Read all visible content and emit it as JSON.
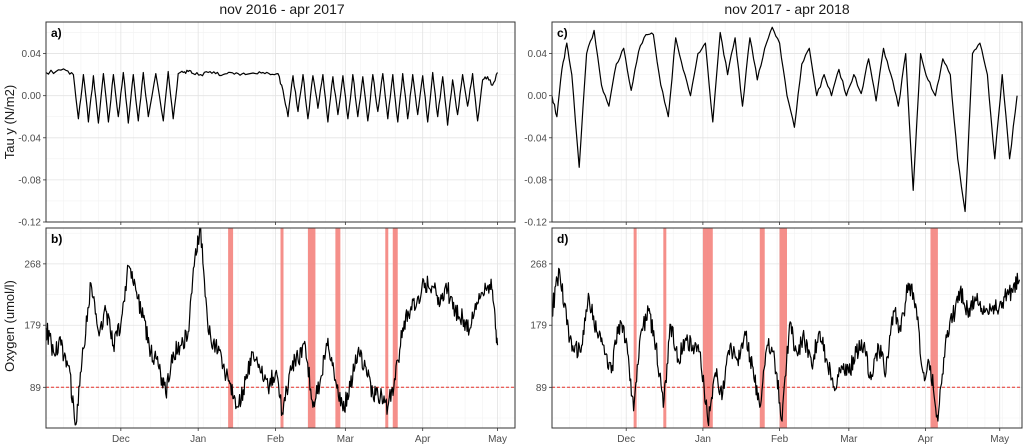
{
  "chart_data": [
    {
      "type": "line",
      "panel": "a)",
      "column_title": "nov 2016 - apr 2017",
      "ylabel": "Tau y (N/m2)",
      "ylim": [
        -0.12,
        0.07
      ],
      "y_ticks": [
        0.04,
        0.0,
        -0.04,
        -0.08,
        -0.12
      ],
      "y_tick_labels": [
        "0.04",
        "0.00",
        "-0.04",
        "-0.08",
        "-0.12"
      ],
      "xlim": [
        "2016-11-01",
        "2017-05-08"
      ],
      "x_ticks": [
        "2016-12-01",
        "2017-01-01",
        "2017-02-01",
        "2017-03-01",
        "2017-04-01",
        "2017-05-01"
      ],
      "x_tick_labels": [
        "Dec",
        "Jan",
        "Feb",
        "Mar",
        "Apr",
        "May"
      ],
      "grid": true,
      "series": [
        {
          "x": [
            "2016-11-01",
            "2016-11-05",
            "2016-11-09",
            "2016-11-12",
            "2016-11-14",
            "2016-11-16",
            "2016-11-18",
            "2016-11-20",
            "2016-11-22",
            "2016-11-24",
            "2016-11-26",
            "2016-11-28",
            "2016-11-30",
            "2016-12-02",
            "2016-12-04",
            "2016-12-06",
            "2016-12-08",
            "2016-12-10",
            "2016-12-12",
            "2016-12-15",
            "2016-12-18",
            "2016-12-20",
            "2016-12-22",
            "2016-12-24",
            "2016-12-26",
            "2016-12-28",
            "2016-12-30",
            "2017-01-02",
            "2017-01-05",
            "2017-01-08",
            "2017-01-11",
            "2017-01-14",
            "2017-01-17",
            "2017-01-20",
            "2017-01-24",
            "2017-01-27",
            "2017-01-30",
            "2017-02-02",
            "2017-02-04",
            "2017-02-06",
            "2017-02-08",
            "2017-02-10",
            "2017-02-12",
            "2017-02-14",
            "2017-02-16",
            "2017-02-18",
            "2017-02-20",
            "2017-02-22",
            "2017-02-24",
            "2017-02-26",
            "2017-02-28",
            "2017-03-02",
            "2017-03-04",
            "2017-03-06",
            "2017-03-08",
            "2017-03-10",
            "2017-03-12",
            "2017-03-14",
            "2017-03-16",
            "2017-03-18",
            "2017-03-20",
            "2017-03-22",
            "2017-03-24",
            "2017-03-26",
            "2017-03-28",
            "2017-03-30",
            "2017-04-01",
            "2017-04-03",
            "2017-04-05",
            "2017-04-07",
            "2017-04-09",
            "2017-04-11",
            "2017-04-13",
            "2017-04-15",
            "2017-04-17",
            "2017-04-19",
            "2017-04-21",
            "2017-04-23",
            "2017-04-25",
            "2017-04-27",
            "2017-04-29",
            "2017-05-01"
          ],
          "values": [
            0.022,
            0.023,
            0.024,
            0.02,
            -0.022,
            0.02,
            -0.025,
            0.019,
            -0.026,
            0.021,
            -0.025,
            0.02,
            -0.02,
            0.022,
            -0.026,
            0.02,
            -0.024,
            0.022,
            -0.02,
            0.021,
            -0.024,
            0.023,
            -0.022,
            0.021,
            0.022,
            0.023,
            0.021,
            0.02,
            0.022,
            0.021,
            0.02,
            0.022,
            0.021,
            0.02,
            0.021,
            0.022,
            0.02,
            0.021,
            0.005,
            -0.02,
            0.019,
            -0.015,
            0.02,
            -0.022,
            0.019,
            -0.012,
            0.02,
            -0.025,
            0.018,
            -0.018,
            0.019,
            -0.022,
            0.02,
            -0.02,
            0.018,
            -0.024,
            0.02,
            -0.015,
            0.021,
            -0.022,
            0.02,
            -0.025,
            0.021,
            -0.022,
            0.02,
            -0.018,
            0.019,
            -0.025,
            0.022,
            -0.02,
            0.018,
            -0.028,
            0.015,
            -0.018,
            0.02,
            -0.01,
            0.021,
            -0.024,
            0.015,
            0.018,
            0.01,
            0.022
          ]
        }
      ]
    },
    {
      "type": "line",
      "panel": "c)",
      "column_title": "nov 2017 - apr 2018",
      "ylim": [
        -0.12,
        0.07
      ],
      "y_ticks": [
        0.04,
        0.0,
        -0.04,
        -0.08,
        -0.12
      ],
      "y_tick_labels": [
        "0.04",
        "0.00",
        "-0.04",
        "-0.08",
        "-0.12"
      ],
      "xlim": [
        "2017-11-01",
        "2018-05-10"
      ],
      "x_ticks": [
        "2017-12-01",
        "2018-01-01",
        "2018-02-01",
        "2018-03-01",
        "2018-04-01",
        "2018-05-01"
      ],
      "x_tick_labels": [
        "Dec",
        "Jan",
        "Feb",
        "Mar",
        "Apr",
        "May"
      ],
      "grid": true,
      "series": [
        {
          "x": [
            "2017-11-01",
            "2017-11-03",
            "2017-11-05",
            "2017-11-07",
            "2017-11-09",
            "2017-11-12",
            "2017-11-15",
            "2017-11-18",
            "2017-11-21",
            "2017-11-24",
            "2017-11-27",
            "2017-11-30",
            "2017-12-03",
            "2017-12-06",
            "2017-12-09",
            "2017-12-12",
            "2017-12-15",
            "2017-12-18",
            "2017-12-21",
            "2017-12-24",
            "2017-12-27",
            "2017-12-30",
            "2018-01-02",
            "2018-01-05",
            "2018-01-08",
            "2018-01-11",
            "2018-01-14",
            "2018-01-17",
            "2018-01-20",
            "2018-01-23",
            "2018-01-26",
            "2018-01-29",
            "2018-02-01",
            "2018-02-04",
            "2018-02-07",
            "2018-02-10",
            "2018-02-13",
            "2018-02-16",
            "2018-02-19",
            "2018-02-22",
            "2018-02-25",
            "2018-02-28",
            "2018-03-03",
            "2018-03-06",
            "2018-03-09",
            "2018-03-12",
            "2018-03-15",
            "2018-03-18",
            "2018-03-21",
            "2018-03-24",
            "2018-03-27",
            "2018-03-30",
            "2018-04-02",
            "2018-04-05",
            "2018-04-08",
            "2018-04-11",
            "2018-04-14",
            "2018-04-17",
            "2018-04-20",
            "2018-04-23",
            "2018-04-26",
            "2018-04-29",
            "2018-05-02",
            "2018-05-05",
            "2018-05-08"
          ],
          "values": [
            0.0,
            -0.02,
            0.025,
            0.05,
            0.02,
            -0.068,
            0.04,
            0.062,
            0.01,
            -0.01,
            0.03,
            0.045,
            0.005,
            0.042,
            0.058,
            0.058,
            0.01,
            -0.02,
            0.055,
            0.025,
            0.0,
            0.04,
            0.05,
            -0.025,
            0.06,
            0.02,
            0.055,
            -0.01,
            0.055,
            0.015,
            0.045,
            0.065,
            0.05,
            0.0,
            -0.03,
            0.03,
            0.045,
            0.0,
            0.02,
            0.0,
            0.025,
            0.0,
            0.02,
            0.002,
            0.035,
            -0.005,
            0.045,
            0.02,
            -0.01,
            0.04,
            -0.09,
            0.04,
            0.015,
            0.0,
            0.035,
            0.02,
            -0.06,
            -0.11,
            0.04,
            0.05,
            0.02,
            -0.06,
            0.02,
            -0.06,
            0.0
          ]
        }
      ]
    },
    {
      "type": "line",
      "panel": "b)",
      "ylabel": "Oxygen (umol/l)",
      "ylim": [
        30,
        320
      ],
      "y_ticks": [
        268,
        179,
        89
      ],
      "y_tick_labels": [
        "268",
        "179",
        "89"
      ],
      "xlim": [
        "2016-11-01",
        "2017-05-08"
      ],
      "x_ticks": [
        "2016-12-01",
        "2017-01-01",
        "2017-02-01",
        "2017-03-01",
        "2017-04-01",
        "2017-05-01"
      ],
      "x_tick_labels": [
        "Dec",
        "Jan",
        "Feb",
        "Mar",
        "Apr",
        "May"
      ],
      "grid": true,
      "hlines": [
        89,
        30
      ],
      "highlight_spans": [
        [
          "2017-01-13",
          "2017-01-15"
        ],
        [
          "2017-02-03",
          "2017-02-04"
        ],
        [
          "2017-02-14",
          "2017-02-17"
        ],
        [
          "2017-02-25",
          "2017-02-27"
        ],
        [
          "2017-03-17",
          "2017-03-18"
        ],
        [
          "2017-03-20",
          "2017-03-22"
        ]
      ],
      "series": [
        {
          "x": [
            "2016-11-01",
            "2016-11-04",
            "2016-11-07",
            "2016-11-10",
            "2016-11-13",
            "2016-11-16",
            "2016-11-19",
            "2016-11-22",
            "2016-11-25",
            "2016-11-28",
            "2016-12-01",
            "2016-12-04",
            "2016-12-07",
            "2016-12-10",
            "2016-12-13",
            "2016-12-16",
            "2016-12-19",
            "2016-12-22",
            "2016-12-25",
            "2016-12-28",
            "2016-12-31",
            "2017-01-02",
            "2017-01-05",
            "2017-01-08",
            "2017-01-11",
            "2017-01-14",
            "2017-01-17",
            "2017-01-20",
            "2017-01-23",
            "2017-01-26",
            "2017-01-29",
            "2017-02-01",
            "2017-02-04",
            "2017-02-07",
            "2017-02-10",
            "2017-02-13",
            "2017-02-16",
            "2017-02-19",
            "2017-02-22",
            "2017-02-25",
            "2017-02-28",
            "2017-03-03",
            "2017-03-06",
            "2017-03-09",
            "2017-03-12",
            "2017-03-15",
            "2017-03-18",
            "2017-03-21",
            "2017-03-24",
            "2017-03-27",
            "2017-03-30",
            "2017-04-02",
            "2017-04-05",
            "2017-04-08",
            "2017-04-11",
            "2017-04-14",
            "2017-04-17",
            "2017-04-20",
            "2017-04-23",
            "2017-04-26",
            "2017-04-29",
            "2017-05-01"
          ],
          "values": [
            175,
            140,
            150,
            120,
            35,
            145,
            240,
            170,
            200,
            150,
            180,
            265,
            230,
            190,
            140,
            120,
            80,
            140,
            150,
            170,
            290,
            320,
            170,
            150,
            120,
            95,
            60,
            100,
            140,
            110,
            90,
            110,
            50,
            120,
            130,
            150,
            60,
            100,
            160,
            100,
            55,
            90,
            140,
            120,
            80,
            75,
            60,
            100,
            175,
            200,
            220,
            240,
            235,
            210,
            230,
            200,
            190,
            175,
            210,
            240,
            230,
            150
          ]
        }
      ]
    },
    {
      "type": "line",
      "panel": "d)",
      "ylim": [
        30,
        320
      ],
      "y_ticks": [
        268,
        179,
        89
      ],
      "y_tick_labels": [
        "268",
        "179",
        "89"
      ],
      "xlim": [
        "2017-11-01",
        "2018-05-10"
      ],
      "x_ticks": [
        "2017-12-01",
        "2018-01-01",
        "2018-02-01",
        "2018-03-01",
        "2018-04-01",
        "2018-05-01"
      ],
      "x_tick_labels": [
        "Dec",
        "Jan",
        "Feb",
        "Mar",
        "Apr",
        "May"
      ],
      "grid": true,
      "hlines": [
        89,
        30
      ],
      "highlight_spans": [
        [
          "2017-12-04",
          "2017-12-05"
        ],
        [
          "2017-12-16",
          "2017-12-17"
        ],
        [
          "2018-01-01",
          "2018-01-05"
        ],
        [
          "2018-01-24",
          "2018-01-26"
        ],
        [
          "2018-02-01",
          "2018-02-04"
        ],
        [
          "2018-04-03",
          "2018-04-06"
        ]
      ],
      "series": [
        {
          "x": [
            "2017-11-01",
            "2017-11-04",
            "2017-11-07",
            "2017-11-10",
            "2017-11-13",
            "2017-11-16",
            "2017-11-19",
            "2017-11-22",
            "2017-11-25",
            "2017-11-28",
            "2017-12-01",
            "2017-12-04",
            "2017-12-07",
            "2017-12-10",
            "2017-12-13",
            "2017-12-16",
            "2017-12-19",
            "2017-12-22",
            "2017-12-25",
            "2017-12-28",
            "2017-12-31",
            "2018-01-03",
            "2018-01-06",
            "2018-01-09",
            "2018-01-12",
            "2018-01-15",
            "2018-01-18",
            "2018-01-21",
            "2018-01-24",
            "2018-01-27",
            "2018-01-30",
            "2018-02-02",
            "2018-02-05",
            "2018-02-08",
            "2018-02-11",
            "2018-02-14",
            "2018-02-17",
            "2018-02-20",
            "2018-02-23",
            "2018-02-26",
            "2018-03-01",
            "2018-03-04",
            "2018-03-07",
            "2018-03-10",
            "2018-03-13",
            "2018-03-16",
            "2018-03-19",
            "2018-03-22",
            "2018-03-25",
            "2018-03-28",
            "2018-03-31",
            "2018-04-03",
            "2018-04-06",
            "2018-04-09",
            "2018-04-12",
            "2018-04-15",
            "2018-04-18",
            "2018-04-21",
            "2018-04-24",
            "2018-04-27",
            "2018-04-30",
            "2018-05-03",
            "2018-05-06",
            "2018-05-09"
          ],
          "values": [
            200,
            260,
            180,
            140,
            150,
            220,
            170,
            150,
            110,
            180,
            160,
            55,
            170,
            200,
            150,
            60,
            180,
            130,
            160,
            150,
            140,
            40,
            110,
            80,
            150,
            130,
            170,
            120,
            60,
            150,
            130,
            40,
            180,
            140,
            160,
            120,
            170,
            130,
            90,
            120,
            110,
            140,
            150,
            100,
            150,
            110,
            200,
            170,
            240,
            210,
            110,
            120,
            40,
            150,
            190,
            230,
            200,
            220,
            195,
            210,
            200,
            220,
            230,
            245
          ]
        }
      ]
    }
  ]
}
